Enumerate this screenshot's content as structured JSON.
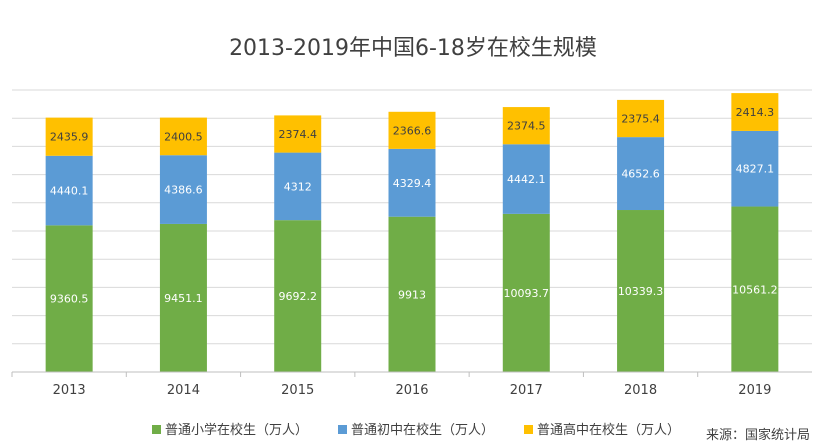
{
  "chart_data": {
    "type": "bar",
    "stacked": true,
    "title": "2013-2019年中国6-18岁在校生规模",
    "xlabel": "",
    "ylabel": "",
    "categories": [
      "2013",
      "2014",
      "2015",
      "2016",
      "2017",
      "2018",
      "2019"
    ],
    "series": [
      {
        "name": "普通小学在校生（万人）",
        "color": "#70AD47",
        "values": [
          9360.5,
          9451.1,
          9692.2,
          9913,
          10093.7,
          10339.3,
          10561.2
        ]
      },
      {
        "name": "普通初中在校生（万人）",
        "color": "#5B9BD5",
        "values": [
          4440.1,
          4386.6,
          4312,
          4329.4,
          4442.1,
          4652.6,
          4827.1
        ]
      },
      {
        "name": "普通高中在校生（万人）",
        "color": "#FFC000",
        "values": [
          2435.9,
          2400.5,
          2374.4,
          2366.6,
          2374.5,
          2375.4,
          2414.3
        ]
      }
    ],
    "ylim": [
      0,
      18000
    ],
    "grid": true,
    "legend_position": "bottom",
    "source": "来源：国家统计局"
  }
}
